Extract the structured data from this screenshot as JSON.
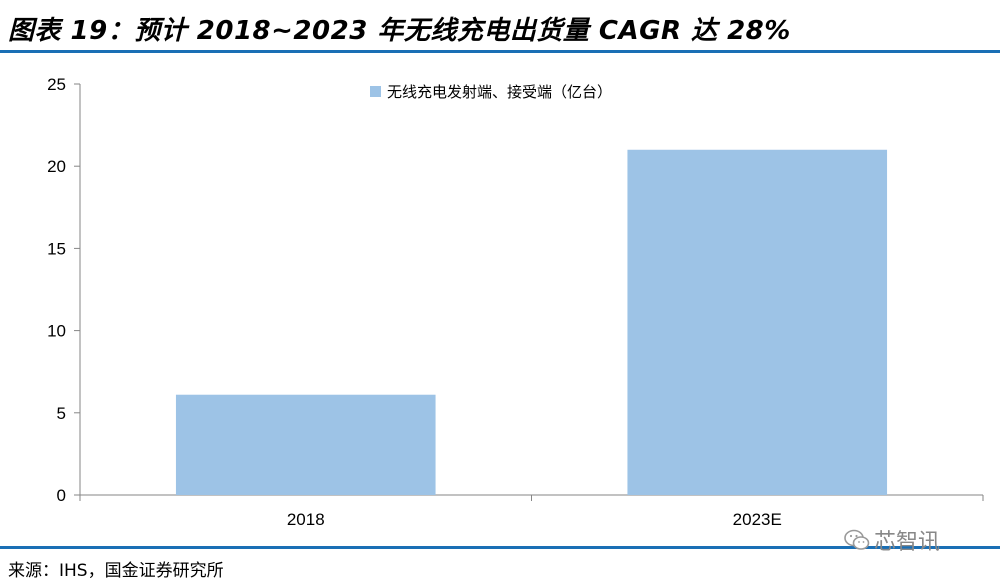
{
  "title": "图表 19：预计 2018~2023 年无线充电出货量 CAGR 达 28%",
  "source": "来源：IHS，国金证券研究所",
  "watermark": {
    "text": "芯智讯",
    "icon": "wechat-icon"
  },
  "colors": {
    "bar": "#9dc3e6",
    "accent_rule": "#1a6fb5",
    "axis": "#868686"
  },
  "chart_data": {
    "type": "bar",
    "categories": [
      "2018",
      "2023E"
    ],
    "series": [
      {
        "name": "无线充电发射端、接受端（亿台）",
        "values": [
          6.1,
          21.0
        ]
      }
    ],
    "ylim": [
      0,
      25
    ],
    "yticks": [
      0,
      5,
      10,
      15,
      20,
      25
    ],
    "xlabel": "",
    "ylabel": "",
    "grid": false,
    "legend_position": "top-center"
  }
}
